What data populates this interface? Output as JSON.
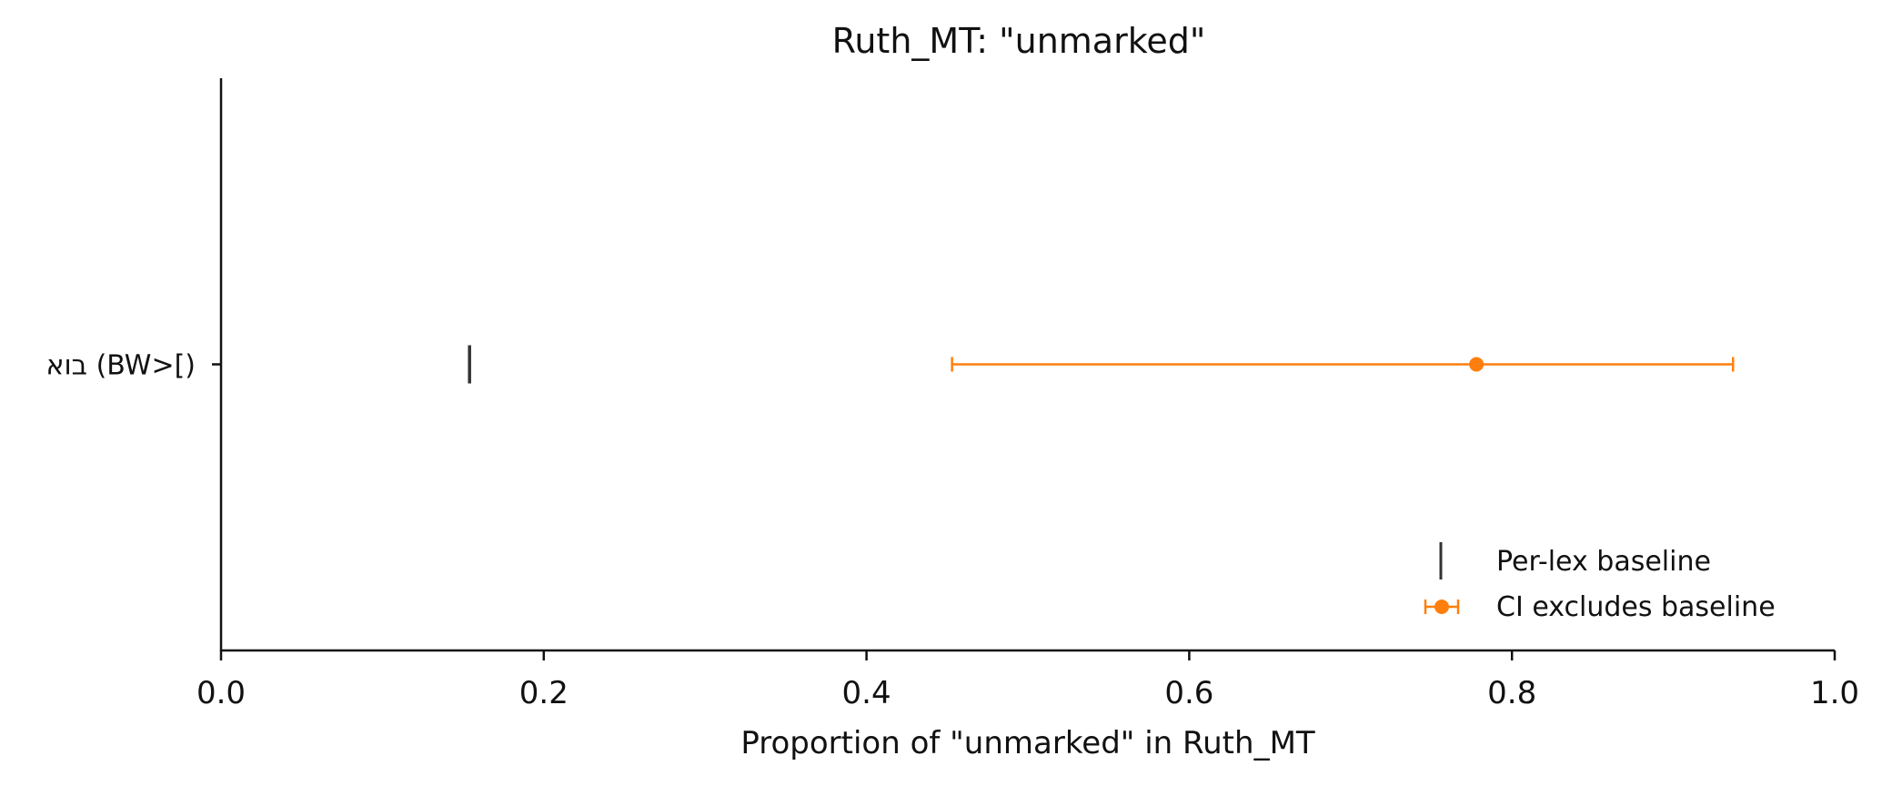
{
  "chart_data": {
    "type": "errorbar",
    "title": "Ruth_MT: \"unmarked\"",
    "xlabel": "Proportion of \"unmarked\" in Ruth_MT",
    "ylabel": "",
    "xlim": [
      0.0,
      1.0
    ],
    "x_ticks": [
      {
        "value": 0.0,
        "label": "0.0"
      },
      {
        "value": 0.2,
        "label": "0.2"
      },
      {
        "value": 0.4,
        "label": "0.4"
      },
      {
        "value": 0.6,
        "label": "0.6"
      },
      {
        "value": 0.8,
        "label": "0.8"
      },
      {
        "value": 1.0,
        "label": "1.0"
      }
    ],
    "categories": [
      "בוא (BW>[)"
    ],
    "series": [
      {
        "name": "Per-lex baseline",
        "marker": "vertical-line",
        "color": "#333333",
        "values": [
          0.154
        ]
      },
      {
        "name": "CI excludes baseline",
        "marker": "point-with-ci",
        "color": "#ff7f0e",
        "estimate": [
          0.778
        ],
        "ci_low": [
          0.453
        ],
        "ci_high": [
          0.937
        ]
      }
    ],
    "grid": false,
    "legend_position": "bottom-right"
  }
}
